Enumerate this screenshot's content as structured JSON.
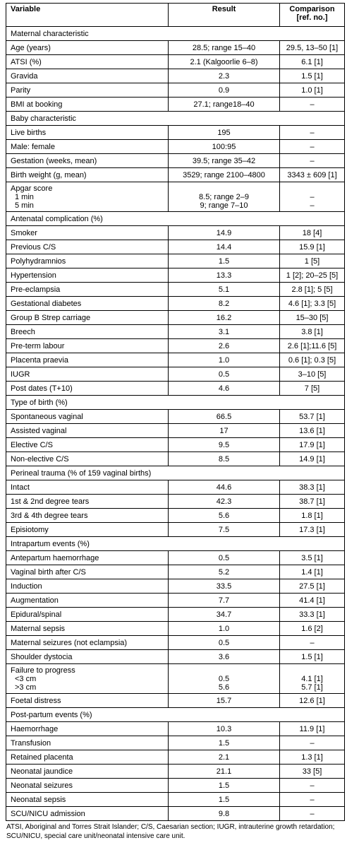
{
  "header": {
    "variable": "Variable",
    "result": "Result",
    "comparison": "Comparison [ref. no.]"
  },
  "sections": [
    {
      "title": "Maternal characteristic",
      "rows": [
        {
          "label": "Age (years)",
          "result": "28.5; range 15–40",
          "comparison": "29.5, 13–50 [1]"
        },
        {
          "label": "ATSI (%)",
          "result": "2.1 (Kalgoorlie 6–8)",
          "comparison": "6.1 [1]"
        },
        {
          "label": "Gravida",
          "result": "2.3",
          "comparison": "1.5 [1]"
        },
        {
          "label": "Parity",
          "result": "0.9",
          "comparison": "1.0 [1]"
        },
        {
          "label": "BMI at booking",
          "result": "27.1; range18–40",
          "comparison": "–"
        }
      ]
    },
    {
      "title": "Baby characteristic",
      "rows": [
        {
          "label": "Live births",
          "result": "195",
          "comparison": "–"
        },
        {
          "label": "Male: female",
          "result": "100:95",
          "comparison": "–"
        },
        {
          "label": "Gestation (weeks, mean)",
          "result": "39.5; range 35–42",
          "comparison": "–"
        },
        {
          "label": "Birth weight (g, mean)",
          "result": "3529; range 2100–4800",
          "comparison": "3343 ± 609 [1]"
        },
        {
          "label": "Apgar score",
          "sub": [
            {
              "label": "1 min",
              "result": "8.5; range 2–9",
              "comparison": "–"
            },
            {
              "label": "5 min",
              "result": "9; range 7–10",
              "comparison": "–"
            }
          ]
        }
      ]
    },
    {
      "title": "Antenatal complication (%)",
      "rows": [
        {
          "label": "Smoker",
          "result": "14.9",
          "comparison": "18 [4]"
        },
        {
          "label": "Previous C/S",
          "result": "14.4",
          "comparison": "15.9 [1]"
        },
        {
          "label": "Polyhydramnios",
          "result": "1.5",
          "comparison": "1 [5]"
        },
        {
          "label": "Hypertension",
          "result": "13.3",
          "comparison": "1 [2]; 20–25 [5]"
        },
        {
          "label": "Pre-eclampsia",
          "result": "5.1",
          "comparison": "2.8 [1]; 5 [5]"
        },
        {
          "label": "Gestational diabetes",
          "result": "8.2",
          "comparison": "4.6 [1]; 3.3 [5]"
        },
        {
          "label": "Group B Strep carriage",
          "result": "16.2",
          "comparison": "15–30 [5]"
        },
        {
          "label": "Breech",
          "result": "3.1",
          "comparison": "3.8 [1]"
        },
        {
          "label": "Pre-term labour",
          "result": "2.6",
          "comparison": "2.6 [1];11.6 [5]"
        },
        {
          "label": "Placenta praevia",
          "result": "1.0",
          "comparison": "0.6 [1]; 0.3 [5]"
        },
        {
          "label": "IUGR",
          "result": "0.5",
          "comparison": "3–10 [5]"
        },
        {
          "label": "Post dates (T+10)",
          "result": "4.6",
          "comparison": "7 [5]"
        }
      ]
    },
    {
      "title": "Type of birth (%)",
      "rows": [
        {
          "label": "Spontaneous vaginal",
          "result": "66.5",
          "comparison": "53.7 [1]"
        },
        {
          "label": "Assisted vaginal",
          "result": "17",
          "comparison": "13.6 [1]"
        },
        {
          "label": "Elective C/S",
          "result": "9.5",
          "comparison": "17.9 [1]"
        },
        {
          "label": "Non-elective C/S",
          "result": "8.5",
          "comparison": "14.9 [1]"
        }
      ]
    },
    {
      "title": "Perineal trauma (% of 159 vaginal births)",
      "rows": [
        {
          "label": "Intact",
          "result": "44.6",
          "comparison": "38.3 [1]"
        },
        {
          "label": "1st & 2nd degree tears",
          "result": "42.3",
          "comparison": "38.7 [1]"
        },
        {
          "label": "3rd & 4th degree tears",
          "result": "5.6",
          "comparison": "1.8 [1]"
        },
        {
          "label": "Episiotomy",
          "result": "7.5",
          "comparison": "17.3 [1]"
        }
      ]
    },
    {
      "title": "Intrapartum events (%)",
      "rows": [
        {
          "label": "Antepartum haemorrhage",
          "result": "0.5",
          "comparison": "3.5 [1]"
        },
        {
          "label": "Vaginal birth after C/S",
          "result": "5.2",
          "comparison": "1.4 [1]"
        },
        {
          "label": "Induction",
          "result": "33.5",
          "comparison": "27.5 [1]"
        },
        {
          "label": "Augmentation",
          "result": "7.7",
          "comparison": "41.4 [1]"
        },
        {
          "label": "Epidural/spinal",
          "result": "34.7",
          "comparison": "33.3 [1]"
        },
        {
          "label": "Maternal sepsis",
          "result": "1.0",
          "comparison": "1.6 [2]"
        },
        {
          "label": "Maternal seizures (not eclampsia)",
          "result": "0.5",
          "comparison": "–"
        },
        {
          "label": "Shoulder dystocia",
          "result": "3.6",
          "comparison": "1.5 [1]"
        },
        {
          "label": "Failure to progress",
          "sub": [
            {
              "label": "<3 cm",
              "result": "0.5",
              "comparison": "4.1 [1]"
            },
            {
              "label": ">3 cm",
              "result": "5.6",
              "comparison": "5.7 [1]"
            }
          ]
        },
        {
          "label": "Foetal distress",
          "result": "15.7",
          "comparison": "12.6 [1]"
        }
      ]
    },
    {
      "title": "Post-partum events (%)",
      "rows": [
        {
          "label": "Haemorrhage",
          "result": "10.3",
          "comparison": "11.9 [1]"
        },
        {
          "label": "Transfusion",
          "result": "1.5",
          "comparison": "–"
        },
        {
          "label": "Retained placenta",
          "result": "2.1",
          "comparison": "1.3 [1]"
        },
        {
          "label": "Neonatal jaundice",
          "result": "21.1",
          "comparison": "33 [5]"
        },
        {
          "label": "Neonatal seizures",
          "result": "1.5",
          "comparison": "–"
        },
        {
          "label": "Neonatal sepsis",
          "result": "1.5",
          "comparison": "–"
        },
        {
          "label": "SCU/NICU admission",
          "result": "9.8",
          "comparison": "–"
        }
      ]
    }
  ],
  "footnote": "ATSI, Aboriginal and Torres Strait Islander; C/S, Caesarian section; IUGR, intrauterine growth retardation; SCU/NICU, special care unit/neonatal intensive care unit."
}
